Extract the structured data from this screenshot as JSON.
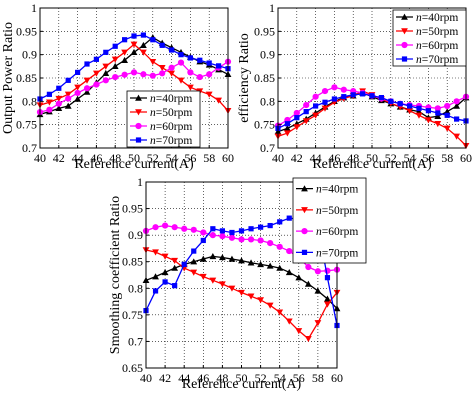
{
  "chart_data": [
    {
      "type": "line",
      "id": "output-power",
      "title": "",
      "xlabel": "Reference current(A)",
      "ylabel": "Output Power Ratio",
      "xlim": [
        40,
        60
      ],
      "ylim": [
        0.7,
        1.0
      ],
      "xticks": [
        "40",
        "42",
        "44",
        "46",
        "48",
        "50",
        "52",
        "54",
        "56",
        "58",
        "60"
      ],
      "yticks": [
        "0.7",
        "0.75",
        "0.8",
        "0.85",
        "0.9",
        "0.95",
        "1"
      ],
      "grid": true,
      "legend_position": "right-center",
      "x": [
        40,
        41,
        42,
        43,
        44,
        45,
        46,
        47,
        48,
        49,
        50,
        51,
        52,
        53,
        54,
        55,
        56,
        57,
        58,
        59,
        60
      ],
      "series": [
        {
          "name": "n=40rpm",
          "color": "#000000",
          "marker": "triangle-up",
          "values": [
            0.772,
            0.778,
            0.785,
            0.79,
            0.805,
            0.82,
            0.84,
            0.86,
            0.875,
            0.888,
            0.905,
            0.92,
            0.937,
            0.925,
            0.915,
            0.905,
            0.895,
            0.885,
            0.878,
            0.868,
            0.858
          ]
        },
        {
          "name": "n=50rpm",
          "color": "#ff0000",
          "marker": "triangle-down",
          "values": [
            0.792,
            0.798,
            0.806,
            0.815,
            0.83,
            0.845,
            0.86,
            0.875,
            0.89,
            0.905,
            0.922,
            0.905,
            0.885,
            0.872,
            0.86,
            0.845,
            0.83,
            0.822,
            0.815,
            0.802,
            0.78
          ]
        },
        {
          "name": "n=60rpm",
          "color": "#ff00ff",
          "marker": "circle",
          "values": [
            0.777,
            0.782,
            0.795,
            0.806,
            0.818,
            0.828,
            0.836,
            0.845,
            0.852,
            0.857,
            0.862,
            0.858,
            0.855,
            0.86,
            0.872,
            0.883,
            0.862,
            0.852,
            0.858,
            0.872,
            0.885
          ]
        },
        {
          "name": "n=70rpm",
          "color": "#0000ff",
          "marker": "square",
          "values": [
            0.805,
            0.815,
            0.828,
            0.845,
            0.862,
            0.88,
            0.89,
            0.905,
            0.918,
            0.932,
            0.94,
            0.942,
            0.932,
            0.92,
            0.91,
            0.9,
            0.893,
            0.888,
            0.882,
            0.876,
            0.87
          ]
        }
      ]
    },
    {
      "type": "line",
      "id": "efficiency",
      "title": "",
      "xlabel": "Reference current(A)",
      "ylabel": "efficiency Ratio",
      "xlim": [
        40,
        60
      ],
      "ylim": [
        0.7,
        1.0
      ],
      "xticks": [
        "40",
        "42",
        "44",
        "46",
        "48",
        "50",
        "52",
        "54",
        "56",
        "58",
        "60"
      ],
      "yticks": [
        "0.7",
        "0.75",
        "0.8",
        "0.85",
        "0.9",
        "0.95",
        "1"
      ],
      "grid": true,
      "legend_position": "top-right",
      "x": [
        40,
        41,
        42,
        43,
        44,
        45,
        46,
        47,
        48,
        49,
        50,
        51,
        52,
        53,
        54,
        55,
        56,
        57,
        58,
        59,
        60
      ],
      "series": [
        {
          "name": "n=40rpm",
          "color": "#000000",
          "marker": "triangle-up",
          "values": [
            0.735,
            0.742,
            0.752,
            0.762,
            0.775,
            0.788,
            0.8,
            0.808,
            0.812,
            0.818,
            0.81,
            0.802,
            0.795,
            0.788,
            0.782,
            0.778,
            0.765,
            0.768,
            0.778,
            0.79,
            0.808
          ]
        },
        {
          "name": "n=50rpm",
          "color": "#ff0000",
          "marker": "triangle-down",
          "values": [
            0.725,
            0.732,
            0.745,
            0.758,
            0.77,
            0.785,
            0.798,
            0.806,
            0.812,
            0.822,
            0.814,
            0.805,
            0.796,
            0.788,
            0.78,
            0.77,
            0.76,
            0.752,
            0.742,
            0.725,
            0.705
          ]
        },
        {
          "name": "n=60rpm",
          "color": "#ff00ff",
          "marker": "circle",
          "values": [
            0.748,
            0.76,
            0.775,
            0.792,
            0.81,
            0.822,
            0.83,
            0.825,
            0.822,
            0.818,
            0.812,
            0.806,
            0.8,
            0.795,
            0.792,
            0.79,
            0.787,
            0.785,
            0.79,
            0.8,
            0.81
          ]
        },
        {
          "name": "n=70rpm",
          "color": "#0000ff",
          "marker": "square",
          "values": [
            0.742,
            0.752,
            0.765,
            0.778,
            0.79,
            0.798,
            0.805,
            0.81,
            0.814,
            0.816,
            0.812,
            0.808,
            0.8,
            0.795,
            0.79,
            0.785,
            0.78,
            0.775,
            0.77,
            0.762,
            0.758
          ]
        }
      ]
    },
    {
      "type": "line",
      "id": "smoothing",
      "title": "",
      "xlabel": "Reference current(A)",
      "ylabel": "Smoothing coefficient Ratio",
      "xlim": [
        40,
        60
      ],
      "ylim": [
        0.65,
        1.0
      ],
      "xticks": [
        "40",
        "42",
        "44",
        "46",
        "48",
        "50",
        "52",
        "54",
        "56",
        "58",
        "60"
      ],
      "yticks": [
        "0.65",
        "0.7",
        "0.75",
        "0.8",
        "0.85",
        "0.9",
        "0.95",
        "1"
      ],
      "grid": true,
      "legend_position": "top-right",
      "x": [
        40,
        41,
        42,
        43,
        44,
        45,
        46,
        47,
        48,
        49,
        50,
        51,
        52,
        53,
        54,
        55,
        56,
        57,
        58,
        59,
        60
      ],
      "series": [
        {
          "name": "n=40rpm",
          "color": "#000000",
          "marker": "triangle-up",
          "values": [
            0.815,
            0.822,
            0.83,
            0.838,
            0.845,
            0.85,
            0.855,
            0.86,
            0.858,
            0.855,
            0.852,
            0.848,
            0.845,
            0.842,
            0.838,
            0.83,
            0.82,
            0.808,
            0.795,
            0.78,
            0.762
          ]
        },
        {
          "name": "n=50rpm",
          "color": "#ff0000",
          "marker": "triangle-down",
          "values": [
            0.872,
            0.868,
            0.86,
            0.852,
            0.838,
            0.83,
            0.822,
            0.815,
            0.808,
            0.8,
            0.792,
            0.785,
            0.778,
            0.768,
            0.755,
            0.738,
            0.72,
            0.705,
            0.735,
            0.77,
            0.792
          ]
        },
        {
          "name": "n=60rpm",
          "color": "#ff00ff",
          "marker": "circle",
          "values": [
            0.908,
            0.915,
            0.918,
            0.915,
            0.912,
            0.91,
            0.905,
            0.9,
            0.898,
            0.895,
            0.892,
            0.892,
            0.89,
            0.885,
            0.878,
            0.87,
            0.858,
            0.84,
            0.832,
            0.833,
            0.835
          ]
        },
        {
          "name": "n=70rpm",
          "color": "#0000ff",
          "marker": "square",
          "values": [
            0.758,
            0.795,
            0.812,
            0.805,
            0.845,
            0.87,
            0.89,
            0.912,
            0.908,
            0.905,
            0.908,
            0.912,
            0.915,
            0.918,
            0.925,
            0.932,
            0.93,
            0.928,
            0.918,
            0.82,
            0.73
          ]
        }
      ]
    }
  ]
}
